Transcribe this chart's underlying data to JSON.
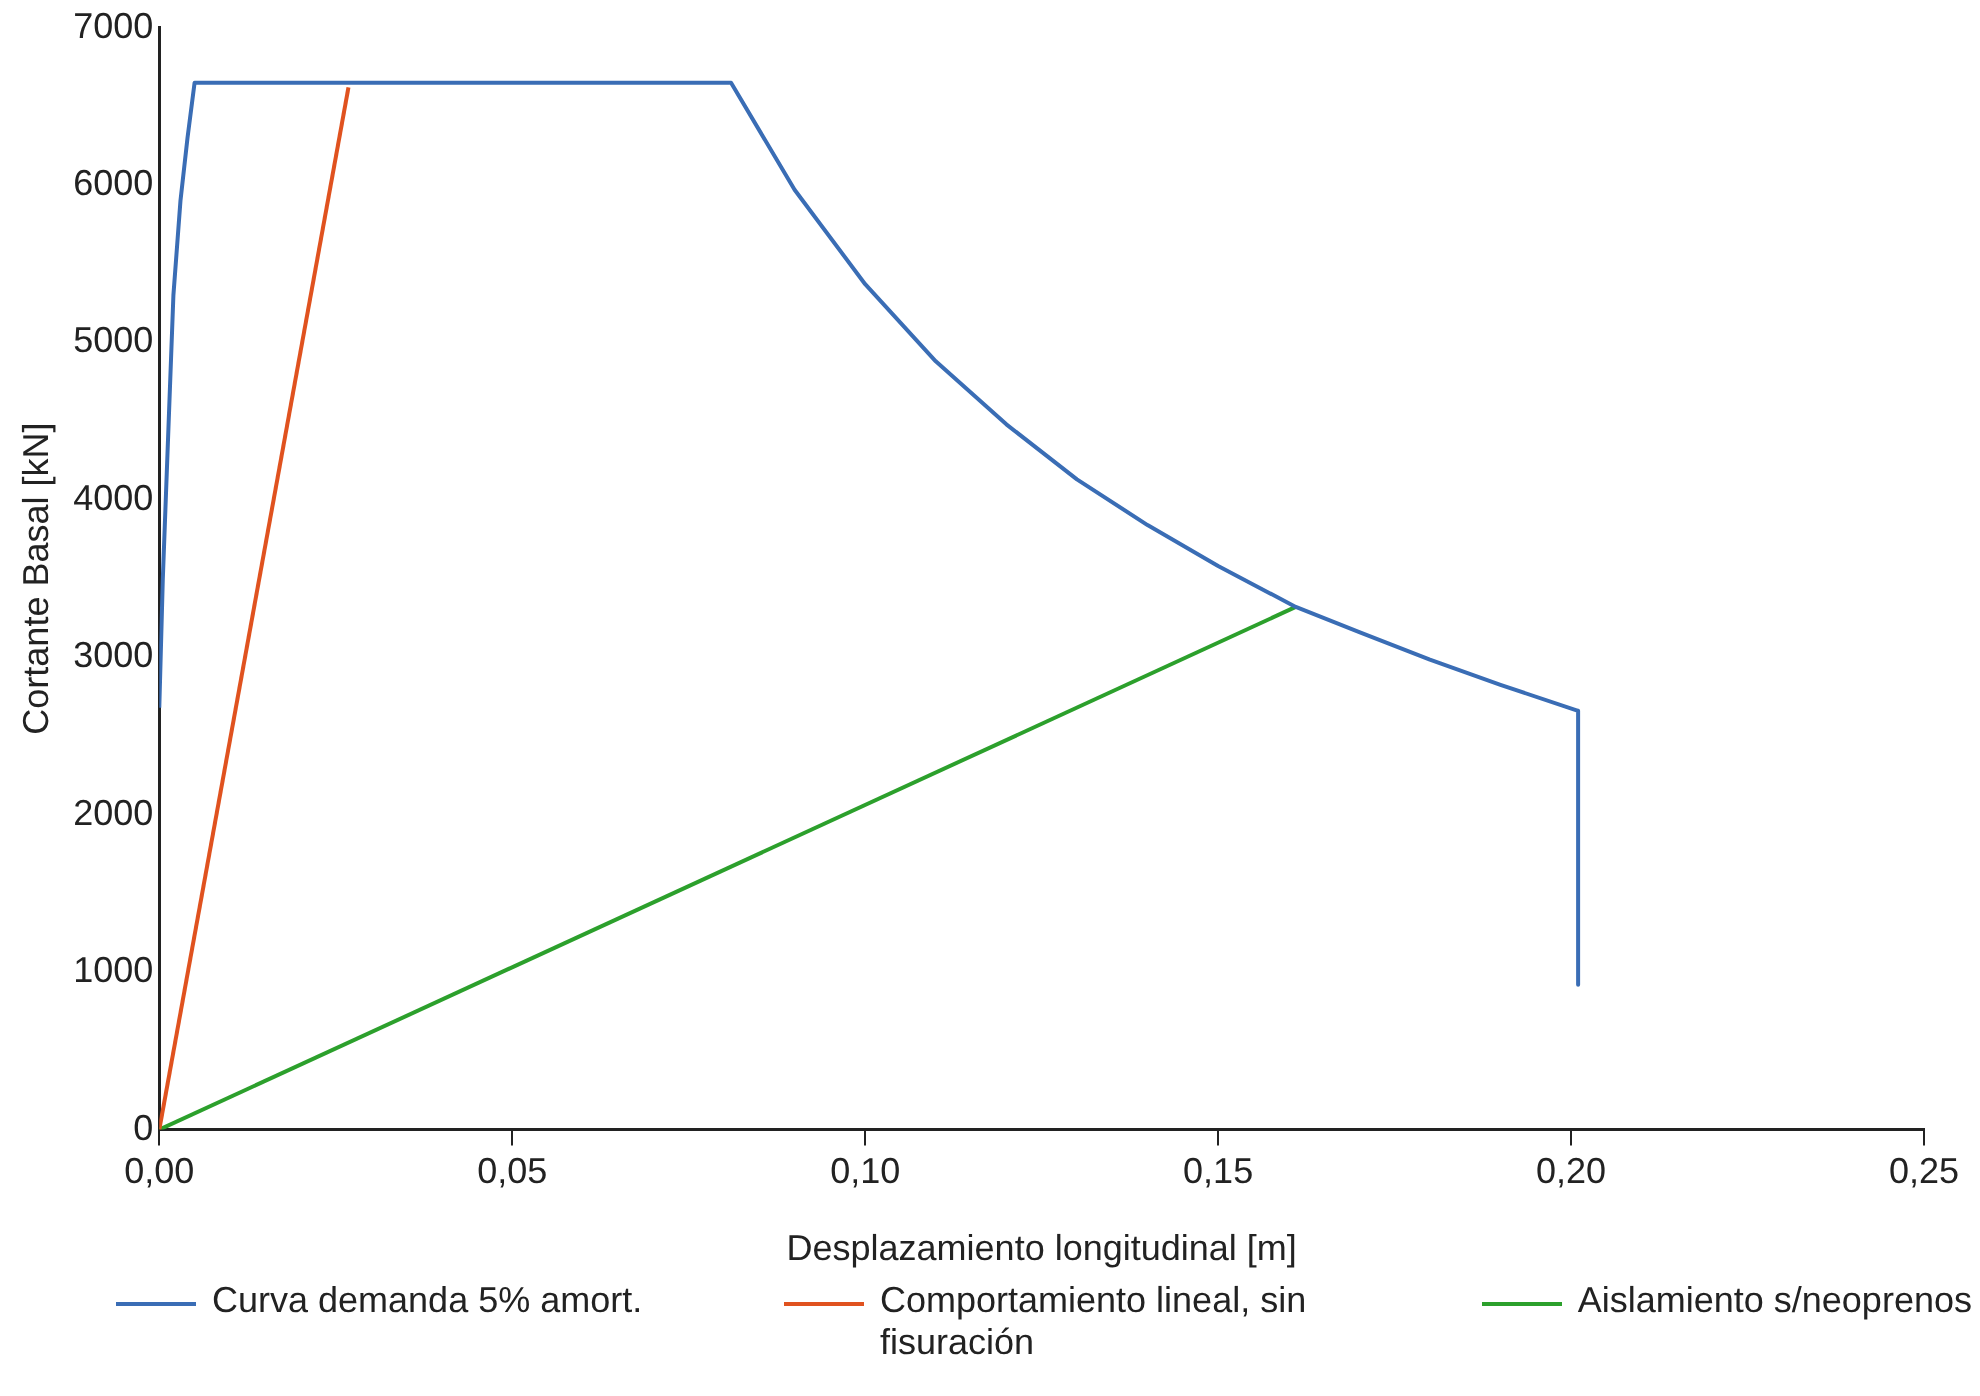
{
  "chart_data": {
    "type": "line",
    "xlabel": "Desplazamiento longitudinal [m]",
    "ylabel": "Cortante Basal [kN]",
    "xlim": [
      0,
      0.25
    ],
    "xticks": [
      {
        "value": 0,
        "label": "0,00"
      },
      {
        "value": 0.05,
        "label": "0,05"
      },
      {
        "value": 0.1,
        "label": "0,10"
      },
      {
        "value": 0.15,
        "label": "0,15"
      },
      {
        "value": 0.2,
        "label": "0,20"
      },
      {
        "value": 0.25,
        "label": "0,25"
      }
    ],
    "ylim": [
      0,
      7000
    ],
    "yticks": [
      0,
      1000,
      2000,
      3000,
      4000,
      5000,
      6000,
      7000
    ],
    "grid": false,
    "legend": "bottom",
    "marker": "none",
    "line_style": "solid",
    "series": [
      {
        "name": "Curva demanda 5% amort.",
        "color": "#3a6db5",
        "x": [
          0,
          0.0005,
          0.001,
          0.002,
          0.003,
          0.004,
          0.005,
          0.081,
          0.09,
          0.1,
          0.11,
          0.12,
          0.13,
          0.14,
          0.15,
          0.161,
          0.17,
          0.18,
          0.19,
          0.201,
          0.201
        ],
        "values": [
          2680,
          3500,
          4100,
          5300,
          5900,
          6300,
          6650,
          6650,
          5970,
          5370,
          4880,
          4480,
          4130,
          3840,
          3580,
          3320,
          3160,
          2985,
          2825,
          2660,
          920
        ]
      },
      {
        "name": "Comportamiento lineal, sin fisuración",
        "color": "#e0521f",
        "x": [
          0,
          0.0268
        ],
        "values": [
          0,
          6620
        ]
      },
      {
        "name": "Aislamiento s/neoprenos",
        "color": "#2ca02c",
        "x": [
          0,
          0.161
        ],
        "values": [
          0,
          3320
        ]
      }
    ]
  }
}
